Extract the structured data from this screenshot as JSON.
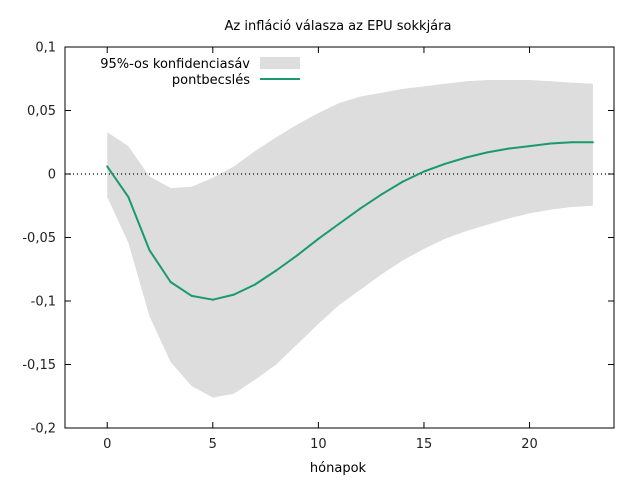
{
  "chart_data": {
    "type": "line",
    "title": "Az infláció válasza az EPU sokkjára",
    "xlabel": "hónapok",
    "ylabel": "",
    "xlim": [
      -2,
      24
    ],
    "ylim": [
      -0.2,
      0.1
    ],
    "x_ticks": [
      0,
      5,
      10,
      15,
      20
    ],
    "x_tick_labels": [
      "0",
      "5",
      "10",
      "15",
      "20"
    ],
    "y_ticks": [
      -0.2,
      -0.15,
      -0.1,
      -0.05,
      0,
      0.05,
      0.1
    ],
    "y_tick_labels": [
      "-0,2",
      "-0,15",
      "-0,1",
      "-0,05",
      "0",
      "0,05",
      "0,1"
    ],
    "grid": false,
    "zero_line": "dotted",
    "legend_position": "top-left",
    "x": [
      0,
      1,
      2,
      3,
      4,
      5,
      6,
      7,
      8,
      9,
      10,
      11,
      12,
      13,
      14,
      15,
      16,
      17,
      18,
      19,
      20,
      21,
      22,
      23
    ],
    "series": [
      {
        "name": "pontbecslés",
        "color": "#1a9a6c",
        "values": [
          0.006,
          -0.018,
          -0.06,
          -0.085,
          -0.096,
          -0.099,
          -0.095,
          -0.087,
          -0.076,
          -0.064,
          -0.051,
          -0.039,
          -0.027,
          -0.016,
          -0.006,
          0.002,
          0.008,
          0.013,
          0.017,
          0.02,
          0.022,
          0.024,
          0.025,
          0.025
        ]
      }
    ],
    "band": {
      "name": "95%-os konfidenciasáv",
      "color": "#dddddd",
      "upper": [
        0.033,
        0.022,
        -0.002,
        -0.011,
        -0.01,
        -0.003,
        0.006,
        0.018,
        0.029,
        0.039,
        0.048,
        0.056,
        0.061,
        0.064,
        0.067,
        0.069,
        0.071,
        0.073,
        0.074,
        0.074,
        0.074,
        0.073,
        0.072,
        0.071
      ],
      "lower": [
        -0.018,
        -0.054,
        -0.112,
        -0.148,
        -0.167,
        -0.176,
        -0.173,
        -0.162,
        -0.15,
        -0.134,
        -0.118,
        -0.103,
        -0.091,
        -0.079,
        -0.068,
        -0.059,
        -0.051,
        -0.045,
        -0.04,
        -0.035,
        -0.031,
        -0.028,
        -0.026,
        -0.025
      ]
    }
  }
}
